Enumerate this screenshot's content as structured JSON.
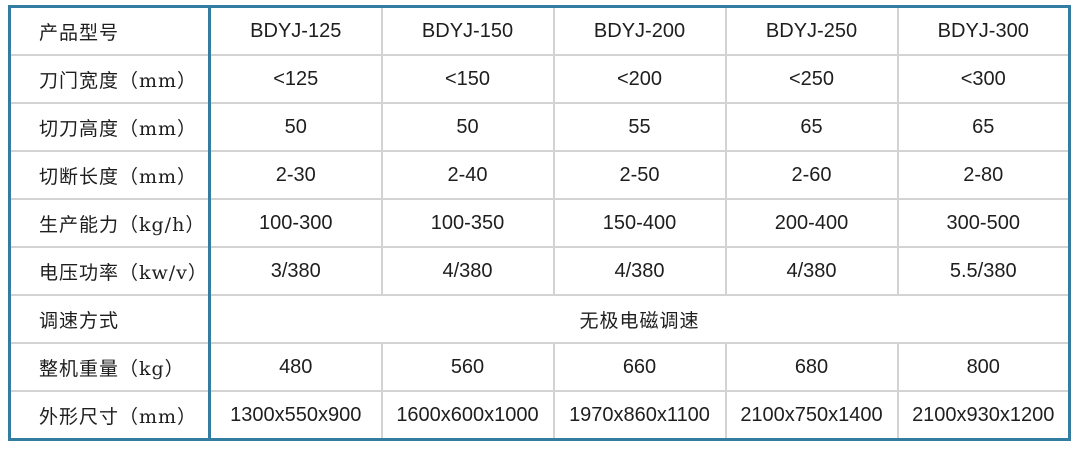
{
  "table": {
    "colors": {
      "border": "#337ca2",
      "grid": "#d3d3d3",
      "text": "#1e1e1e",
      "background": "#ffffff"
    },
    "header_row": {
      "label": "产品型号",
      "models": [
        "BDYJ-125",
        "BDYJ-150",
        "BDYJ-200",
        "BDYJ-250",
        "BDYJ-300"
      ]
    },
    "rows": [
      {
        "label": "刀门宽度（mm）",
        "values": [
          "<125",
          "<150",
          "<200",
          "<250",
          "<300"
        ]
      },
      {
        "label": "切刀高度（mm）",
        "values": [
          "50",
          "50",
          "55",
          "65",
          "65"
        ]
      },
      {
        "label": "切断长度（mm）",
        "values": [
          "2-30",
          "2-40",
          "2-50",
          "2-60",
          "2-80"
        ]
      },
      {
        "label": "生产能力（kg/h）",
        "values": [
          "100-300",
          "100-350",
          "150-400",
          "200-400",
          "300-500"
        ]
      },
      {
        "label": "电压功率（kw/v）",
        "values": [
          "3/380",
          "4/380",
          "4/380",
          "4/380",
          "5.5/380"
        ]
      },
      {
        "label": "调速方式",
        "merged_value": "无极电磁调速"
      },
      {
        "label": "整机重量（kg）",
        "values": [
          "480",
          "560",
          "660",
          "680",
          "800"
        ]
      },
      {
        "label": "外形尺寸（mm）",
        "values": [
          "1300x550x900",
          "1600x600x1000",
          "1970x860x1100",
          "2100x750x1400",
          "2100x930x1200"
        ]
      }
    ]
  }
}
